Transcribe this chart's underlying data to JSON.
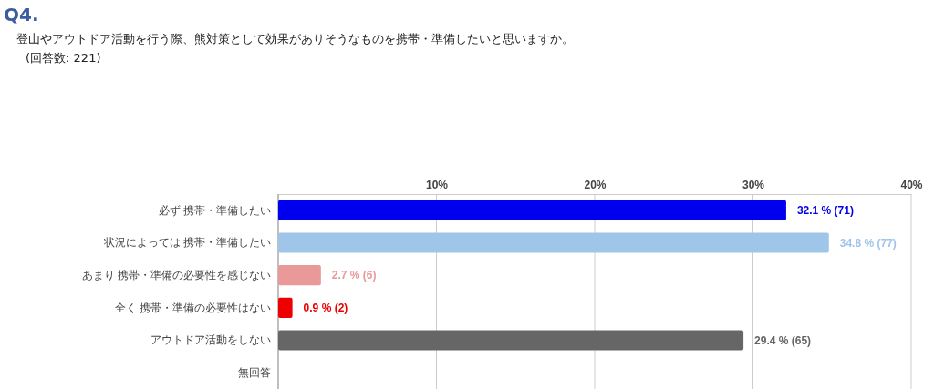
{
  "chart_data": {
    "type": "bar",
    "orientation": "horizontal",
    "title": "Q4.",
    "subtitle": "登山やアウトドア活動を行う際、熊対策として効果がありそうなものを携帯・準備したいと思いますか。",
    "annotations": [
      "(回答数: 221)"
    ],
    "categories": [
      "必ず 携帯・準備したい",
      "状況によっては 携帯・準備したい",
      "あまり 携帯・準備の必要性を感じない",
      "全く 携帯・準備の必要性はない",
      "アウトドア活動をしない",
      "無回答"
    ],
    "values": [
      32.1,
      34.8,
      2.7,
      0.9,
      29.4,
      null
    ],
    "colors": [
      "#0000ee",
      "#9fc5e8",
      "#ea9999",
      "#ee0000",
      "#666666",
      null
    ],
    "value_labels": [
      "32.1 % (71)",
      "34.8 % (77)",
      "2.7 % (6)",
      "0.9 % (2)",
      "29.4 % (65)",
      null
    ],
    "xlim": [
      0,
      40
    ],
    "xticks": [
      {
        "value": 0,
        "label": null
      },
      {
        "value": 10,
        "label": "10%"
      },
      {
        "value": 20,
        "label": "20%"
      },
      {
        "value": 30,
        "label": "30%"
      },
      {
        "value": 40,
        "label": "40%"
      }
    ],
    "grid": "x"
  }
}
